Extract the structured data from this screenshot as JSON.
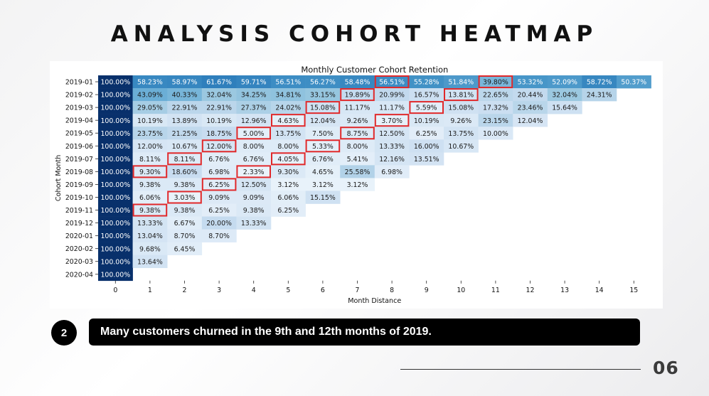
{
  "slide": {
    "title": "ANALYSIS COHORT HEATMAP",
    "note_number": "2",
    "note_text": "Many customers churned in the 9th and 12th months of 2019.",
    "page_number": "06"
  },
  "chart_data": {
    "type": "heatmap",
    "title": "Monthly Customer Cohort Retention",
    "xlabel": "Month Distance",
    "ylabel": "Cohort Month",
    "x_ticks": [
      "0",
      "1",
      "2",
      "3",
      "4",
      "5",
      "6",
      "7",
      "8",
      "9",
      "10",
      "11",
      "12",
      "13",
      "14",
      "15"
    ],
    "rows": [
      "2019-01",
      "2019-02",
      "2019-03",
      "2019-04",
      "2019-05",
      "2019-06",
      "2019-07",
      "2019-08",
      "2019-09",
      "2019-10",
      "2019-11",
      "2019-12",
      "2020-01",
      "2020-02",
      "2020-03",
      "2020-04"
    ],
    "values": [
      [
        100.0,
        58.23,
        58.97,
        61.67,
        59.71,
        56.51,
        56.27,
        58.48,
        56.51,
        55.28,
        51.84,
        39.8,
        53.32,
        52.09,
        58.72,
        50.37
      ],
      [
        100.0,
        43.09,
        40.33,
        32.04,
        34.25,
        34.81,
        33.15,
        19.89,
        20.99,
        16.57,
        13.81,
        22.65,
        20.44,
        32.04,
        24.31
      ],
      [
        100.0,
        29.05,
        22.91,
        22.91,
        27.37,
        24.02,
        15.08,
        11.17,
        11.17,
        5.59,
        15.08,
        17.32,
        23.46,
        15.64
      ],
      [
        100.0,
        10.19,
        13.89,
        10.19,
        12.96,
        4.63,
        12.04,
        9.26,
        3.7,
        10.19,
        9.26,
        23.15,
        12.04
      ],
      [
        100.0,
        23.75,
        21.25,
        18.75,
        5.0,
        13.75,
        7.5,
        8.75,
        12.5,
        6.25,
        13.75,
        10.0
      ],
      [
        100.0,
        12.0,
        10.67,
        12.0,
        8.0,
        8.0,
        5.33,
        8.0,
        13.33,
        16.0,
        10.67
      ],
      [
        100.0,
        8.11,
        8.11,
        6.76,
        6.76,
        4.05,
        6.76,
        5.41,
        12.16,
        13.51
      ],
      [
        100.0,
        9.3,
        18.6,
        6.98,
        2.33,
        9.3,
        4.65,
        25.58,
        6.98
      ],
      [
        100.0,
        9.38,
        9.38,
        6.25,
        12.5,
        3.12,
        3.12,
        3.12
      ],
      [
        100.0,
        6.06,
        3.03,
        9.09,
        9.09,
        6.06,
        15.15
      ],
      [
        100.0,
        9.38,
        9.38,
        6.25,
        9.38,
        6.25
      ],
      [
        100.0,
        13.33,
        6.67,
        20.0,
        13.33
      ],
      [
        100.0,
        13.04,
        8.7,
        8.7
      ],
      [
        100.0,
        9.68,
        6.45
      ],
      [
        100.0,
        13.64
      ],
      [
        100.0
      ]
    ],
    "value_format": "percent_2dp",
    "highlighted_cells": [
      [
        0,
        8
      ],
      [
        0,
        11
      ],
      [
        1,
        7
      ],
      [
        1,
        10
      ],
      [
        2,
        6
      ],
      [
        2,
        9
      ],
      [
        3,
        5
      ],
      [
        3,
        8
      ],
      [
        4,
        4
      ],
      [
        4,
        7
      ],
      [
        5,
        3
      ],
      [
        5,
        6
      ],
      [
        6,
        2
      ],
      [
        6,
        5
      ],
      [
        7,
        1
      ],
      [
        7,
        4
      ],
      [
        8,
        3
      ],
      [
        9,
        2
      ],
      [
        10,
        1
      ]
    ],
    "colors": {
      "highlight": "#e0282a",
      "dark_text": "#ffffff",
      "light_text": "#1a1a1a"
    }
  }
}
